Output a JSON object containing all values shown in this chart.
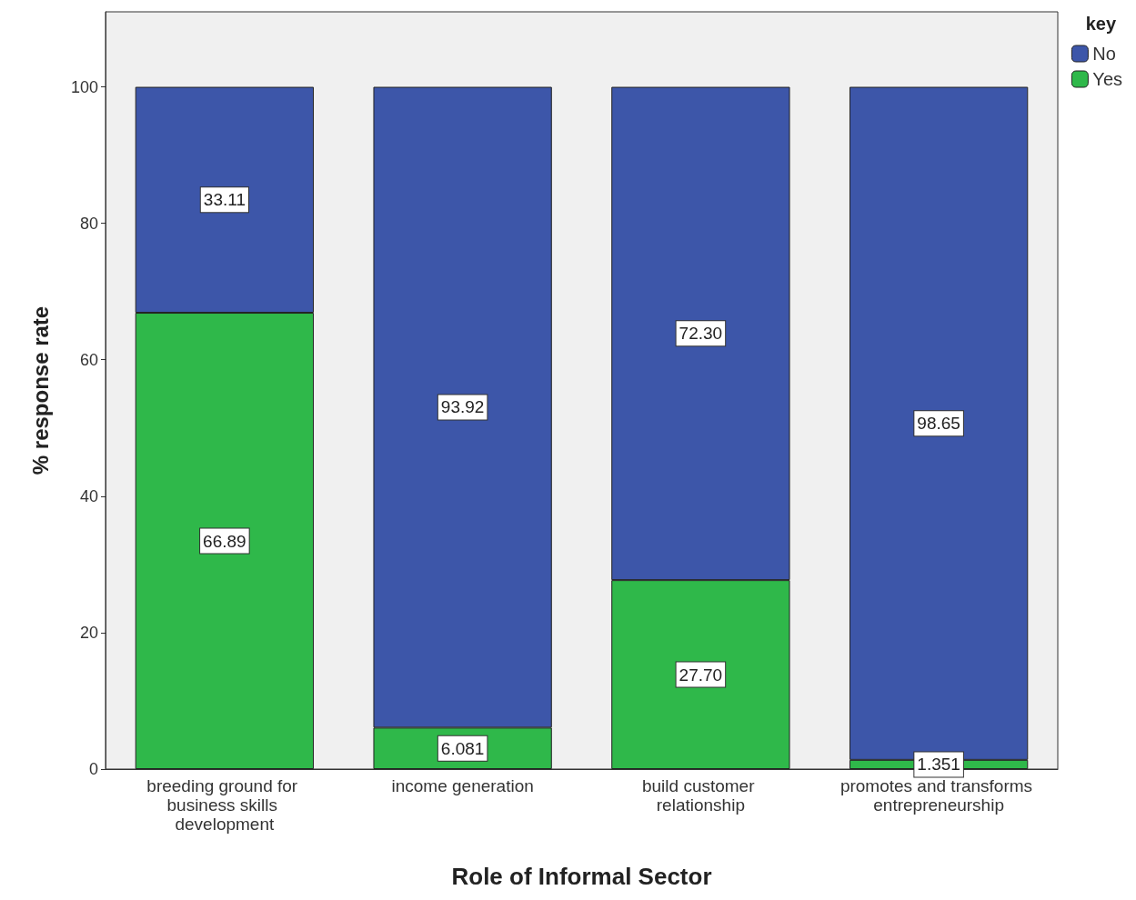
{
  "chart_data": {
    "type": "bar",
    "stacked": true,
    "xlabel": "Role of Informal Sector",
    "ylabel": "% response rate",
    "legend_title": "key",
    "legend": "top right",
    "categories": [
      "breeding ground for business skills development",
      "income generation",
      "build customer relationship",
      "promotes and transforms entrepreneurship"
    ],
    "series": [
      {
        "name": "Yes",
        "color": "#2fb84a",
        "values": [
          66.89,
          6.081,
          27.7,
          1.351
        ],
        "value_labels": [
          "66.89",
          "6.081",
          "27.70",
          "1.351"
        ]
      },
      {
        "name": "No",
        "color": "#3d56a9",
        "values": [
          33.11,
          93.92,
          72.3,
          98.65
        ],
        "value_labels": [
          "33.11",
          "93.92",
          "72.30",
          "98.65"
        ]
      }
    ],
    "ylim": [
      0,
      111
    ],
    "yticks": [
      0,
      20,
      40,
      60,
      80,
      100
    ],
    "grid": false
  }
}
